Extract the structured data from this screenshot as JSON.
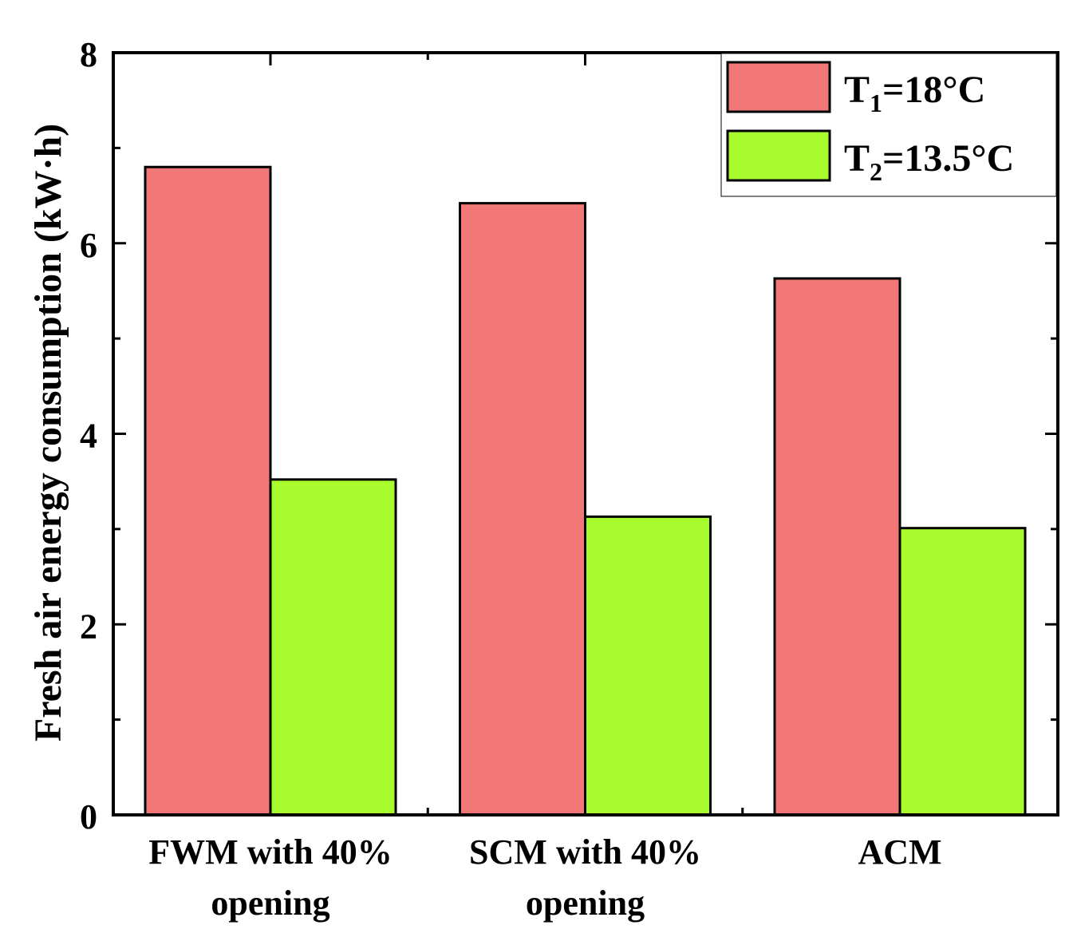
{
  "chart_data": {
    "type": "bar",
    "title": "",
    "xlabel": "",
    "ylabel": "Fresh air energy consumption (kW·h)",
    "ylim": [
      0,
      8
    ],
    "yticks": [
      "0",
      "2",
      "4",
      "6",
      "8"
    ],
    "categories": [
      [
        "FWM with 40%",
        "opening"
      ],
      [
        "SCM with 40%",
        "opening"
      ],
      [
        "ACM"
      ]
    ],
    "series": [
      {
        "name": "T1=18°C",
        "label_main": "T",
        "label_sub": "1",
        "label_rest": "=18°C",
        "color": "#F27777",
        "values": [
          6.8,
          6.42,
          5.63
        ]
      },
      {
        "name": "T2=13.5°C",
        "label_main": "T",
        "label_sub": "2",
        "label_rest": "=13.5°C",
        "color": "#A8FC2E",
        "values": [
          3.52,
          3.13,
          3.01
        ]
      }
    ],
    "legend_position": "top-right",
    "grid": false
  }
}
